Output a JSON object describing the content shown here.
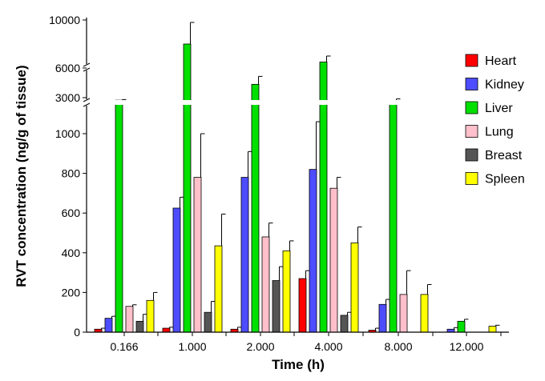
{
  "chart_data": {
    "type": "bar",
    "title": "",
    "xlabel": "Time (h)",
    "ylabel": "RVT concentration  (ng/g of tissue)",
    "categories": [
      "0.166",
      "1.000",
      "2.000",
      "4.000",
      "8.000",
      "12.000"
    ],
    "y_axis": {
      "broken": true,
      "lower_segment": {
        "range": [
          0,
          1000
        ],
        "ticks": [
          "0",
          "200",
          "400",
          "600",
          "800",
          "1000"
        ]
      },
      "upper_ticks": [
        "3000",
        "6000",
        "10000"
      ]
    },
    "grid": false,
    "legend_position": "right",
    "series": [
      {
        "name": "Heart",
        "color": "#ff0000",
        "values": [
          15,
          20,
          15,
          270,
          10,
          0
        ],
        "errors": [
          5,
          5,
          10,
          40,
          10,
          0
        ]
      },
      {
        "name": "Kidney",
        "color": "#4d4dff",
        "values": [
          70,
          625,
          780,
          820,
          140,
          15
        ],
        "errors": [
          10,
          55,
          130,
          290,
          25,
          8
        ]
      },
      {
        "name": "Liver",
        "color": "#00e000",
        "values": [
          2500,
          8000,
          4000,
          6500,
          2400,
          55
        ],
        "errors": [
          120,
          1800,
          700,
          500,
          350,
          10
        ]
      },
      {
        "name": "Lung",
        "color": "#ffc0cb",
        "values": [
          130,
          780,
          480,
          725,
          190,
          0
        ],
        "errors": [
          8,
          220,
          70,
          55,
          120,
          0
        ]
      },
      {
        "name": "Breast",
        "color": "#555555",
        "values": [
          55,
          100,
          260,
          85,
          0,
          0
        ],
        "errors": [
          35,
          55,
          70,
          15,
          0,
          0
        ]
      },
      {
        "name": "Spleen",
        "color": "#ffff00",
        "values": [
          160,
          435,
          410,
          450,
          190,
          30
        ],
        "errors": [
          40,
          160,
          50,
          80,
          50,
          5
        ]
      }
    ]
  }
}
